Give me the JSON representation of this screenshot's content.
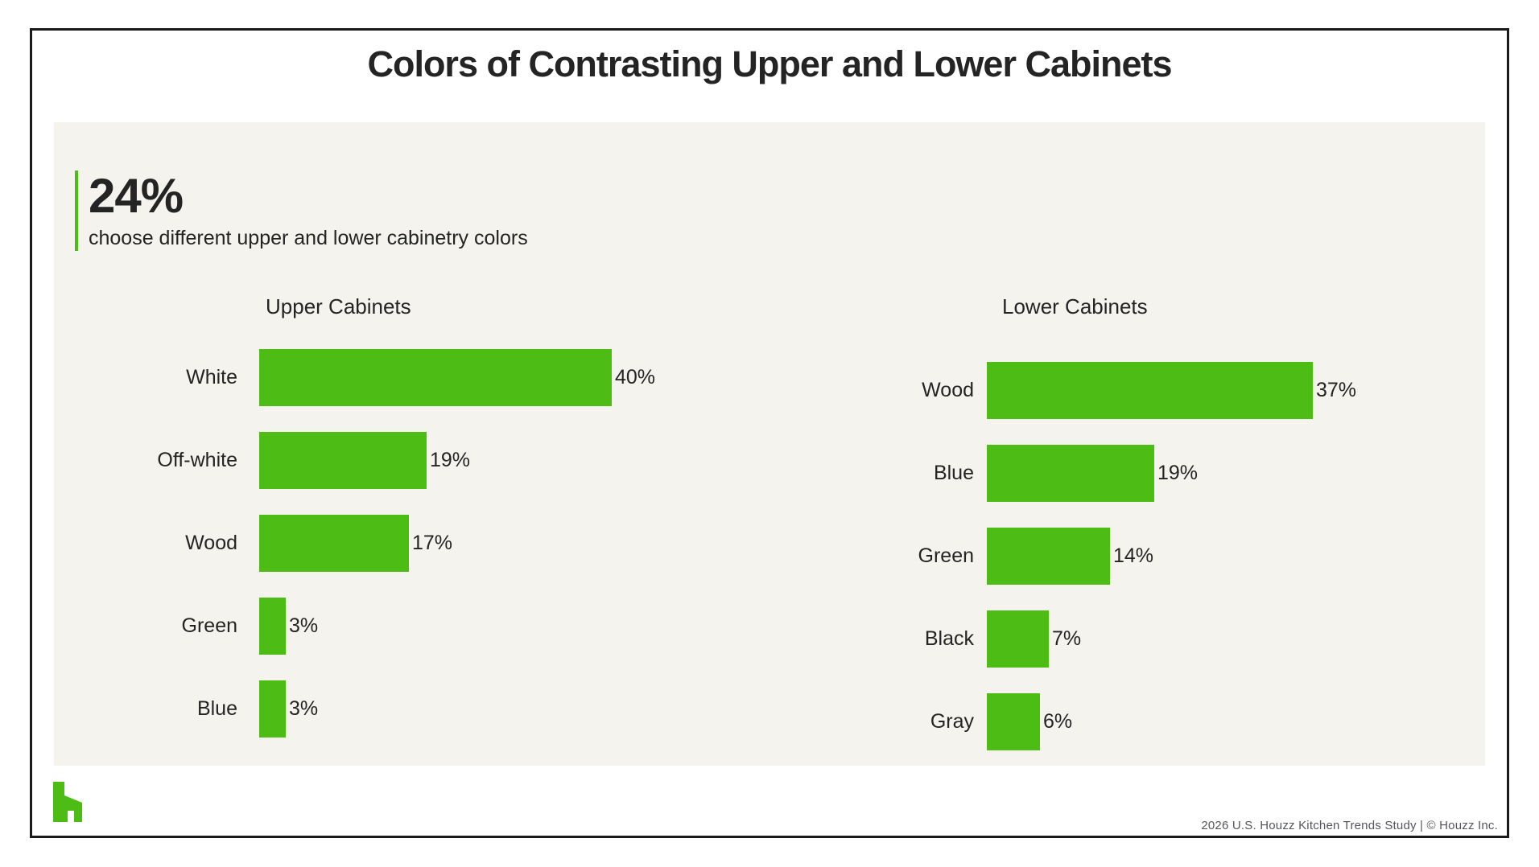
{
  "page": {
    "title": "Colors of Contrasting Upper and Lower Cabinets",
    "footer_credit": "2026 U.S. Houzz Kitchen Trends Study  |  © Houzz Inc.",
    "logo": "houzz-h-logo"
  },
  "stat": {
    "value": "24%",
    "description": "choose different upper and lower cabinetry colors"
  },
  "colors": {
    "bar_green": "#4dbc15",
    "accent_green": "#4dbc15",
    "panel_background": "#f4f3ee",
    "text_dark": "#242424",
    "footer_gray": "#55565a",
    "card_border": "#1b1b1b"
  },
  "chart_data": [
    {
      "type": "bar",
      "orientation": "horizontal",
      "title": "Upper Cabinets",
      "categories": [
        "White",
        "Off-white",
        "Wood",
        "Green",
        "Blue"
      ],
      "values": [
        40,
        19,
        17,
        3,
        3
      ],
      "unit": "%",
      "xlim": [
        0,
        45
      ],
      "grid": false,
      "data_labels": "outside-end",
      "bar_color": "#4dbc15"
    },
    {
      "type": "bar",
      "orientation": "horizontal",
      "title": "Lower Cabinets",
      "categories": [
        "Wood",
        "Blue",
        "Green",
        "Black",
        "Gray"
      ],
      "values": [
        37,
        19,
        14,
        7,
        6
      ],
      "unit": "%",
      "xlim": [
        0,
        45
      ],
      "grid": false,
      "data_labels": "outside-end",
      "bar_color": "#4dbc15"
    }
  ]
}
